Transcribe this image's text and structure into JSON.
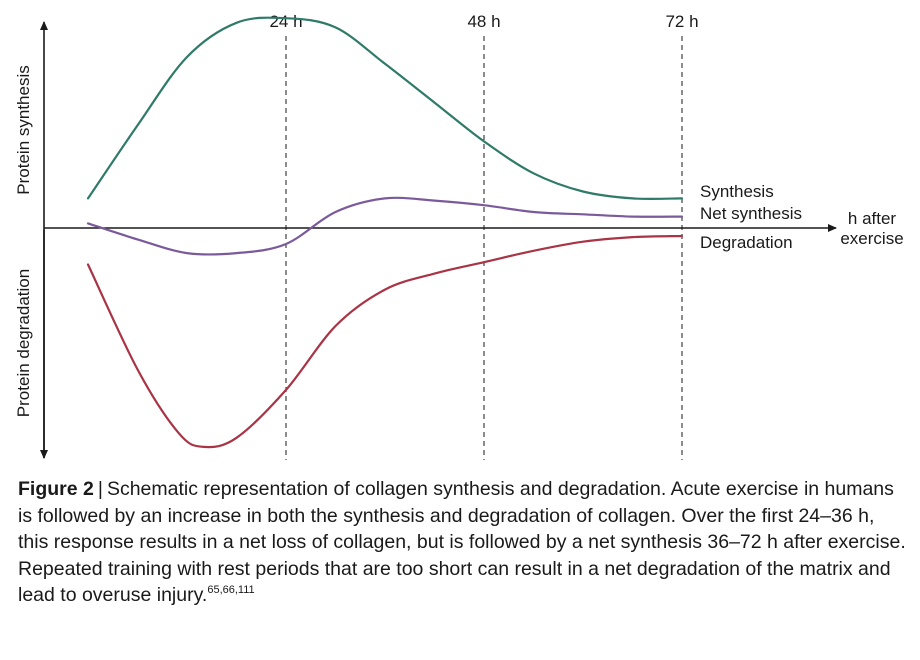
{
  "chart_data": {
    "type": "line",
    "xlabel": "h after exercise",
    "ylabel_top": "Protein synthesis",
    "ylabel_bottom": "Protein degradation",
    "x_ticks": [
      {
        "value": 24,
        "label": "24 h"
      },
      {
        "value": 48,
        "label": "48 h"
      },
      {
        "value": 72,
        "label": "72 h"
      }
    ],
    "xlim": [
      -7,
      90
    ],
    "ylim": [
      -1.05,
      1.05
    ],
    "grid": "vertical dashed lines at 24, 48 and 72 h",
    "series": [
      {
        "name": "Synthesis",
        "color": "#2f7a68",
        "points": [
          [
            0,
            0.13
          ],
          [
            6,
            0.45
          ],
          [
            12,
            0.75
          ],
          [
            18,
            0.9
          ],
          [
            24,
            0.92
          ],
          [
            30,
            0.88
          ],
          [
            36,
            0.72
          ],
          [
            42,
            0.55
          ],
          [
            48,
            0.38
          ],
          [
            54,
            0.24
          ],
          [
            60,
            0.16
          ],
          [
            66,
            0.13
          ],
          [
            72,
            0.13
          ]
        ]
      },
      {
        "name": "Net synthesis",
        "color": "#7a5a9a",
        "points": [
          [
            0,
            0.02
          ],
          [
            6,
            -0.05
          ],
          [
            12,
            -0.11
          ],
          [
            18,
            -0.11
          ],
          [
            24,
            -0.07
          ],
          [
            30,
            0.07
          ],
          [
            36,
            0.13
          ],
          [
            42,
            0.12
          ],
          [
            48,
            0.1
          ],
          [
            54,
            0.07
          ],
          [
            60,
            0.06
          ],
          [
            66,
            0.05
          ],
          [
            72,
            0.05
          ]
        ]
      },
      {
        "name": "Degradation",
        "color": "#a83445",
        "points": [
          [
            0,
            -0.16
          ],
          [
            6,
            -0.62
          ],
          [
            11,
            -0.9
          ],
          [
            14,
            -0.96
          ],
          [
            18,
            -0.92
          ],
          [
            24,
            -0.71
          ],
          [
            30,
            -0.43
          ],
          [
            36,
            -0.27
          ],
          [
            42,
            -0.2
          ],
          [
            48,
            -0.15
          ],
          [
            54,
            -0.1
          ],
          [
            60,
            -0.06
          ],
          [
            66,
            -0.04
          ],
          [
            72,
            -0.035
          ]
        ]
      }
    ]
  },
  "caption": {
    "figure_label": "Figure 2",
    "separator": "|",
    "text": "Schematic representation of collagen synthesis and degradation. Acute exercise in humans is followed by an increase in both the synthesis and degradation of collagen. Over the first 24–36 h, this response results in a net loss of collagen, but is followed by a net synthesis 36–72 h after exercise. Repeated training with rest periods that are too short can result in a net degradation of the matrix and lead to overuse injury.",
    "references": "65,66,111"
  }
}
